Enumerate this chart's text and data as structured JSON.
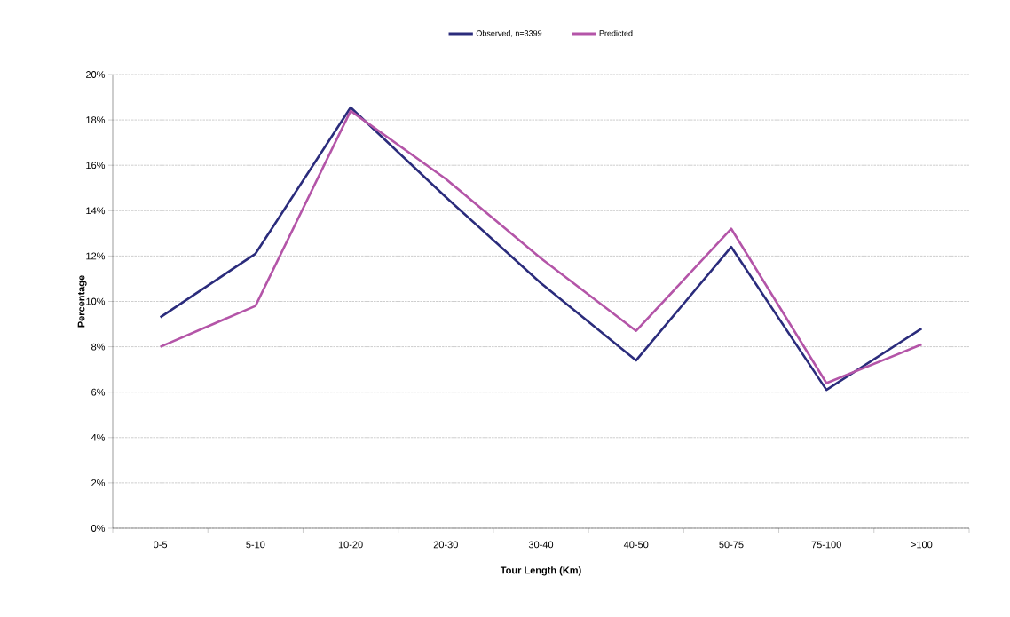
{
  "chart_data": {
    "type": "line",
    "xlabel": "Tour Length  (Km)",
    "ylabel": "Percentage",
    "categories": [
      "0-5",
      "5-10",
      "10-20",
      "20-30",
      "30-40",
      "40-50",
      "50-75",
      "75-100",
      ">100"
    ],
    "series": [
      {
        "name": "Observed, n=3399",
        "color": "#2b2c7c",
        "values": [
          9.3,
          12.1,
          18.55,
          14.6,
          10.8,
          7.4,
          12.4,
          6.1,
          8.8
        ]
      },
      {
        "name": "Predicted",
        "color": "#b455a8",
        "values": [
          8.0,
          9.8,
          18.4,
          15.4,
          11.9,
          8.7,
          13.2,
          6.4,
          8.1
        ]
      }
    ],
    "ylim": [
      0,
      20
    ],
    "yticks": [
      {
        "value": 0,
        "label": "0%"
      },
      {
        "value": 2,
        "label": "2%"
      },
      {
        "value": 4,
        "label": "4%"
      },
      {
        "value": 6,
        "label": "6%"
      },
      {
        "value": 8,
        "label": "8%"
      },
      {
        "value": 10,
        "label": "10%"
      },
      {
        "value": 12,
        "label": "12%"
      },
      {
        "value": 14,
        "label": "14%"
      },
      {
        "value": 16,
        "label": "16%"
      },
      {
        "value": 18,
        "label": "18%"
      },
      {
        "value": 20,
        "label": "20%"
      }
    ],
    "grid": "y",
    "legend": "top",
    "marker": "none",
    "line_style": "solid"
  }
}
